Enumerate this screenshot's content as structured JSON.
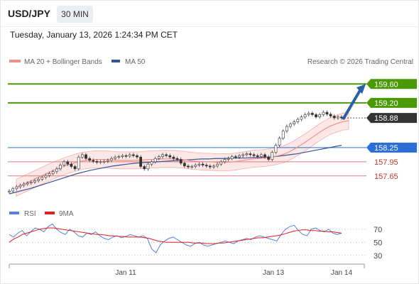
{
  "header": {
    "symbol": "USD/JPY",
    "timeframe": "30 MIN",
    "datetime": "Tuesday, January 13, 2026 1:24:34 PM CET"
  },
  "watermark": "Research © 2026 Trading Central",
  "colors": {
    "resistance": "#4a9a07",
    "support_red": "#e87a7a",
    "pivot_blue": "#2b6fd6",
    "ma20": "#f0908a",
    "ma50": "#35559a",
    "last": "#333333",
    "rsi": "#5b7fd4",
    "rsi_ma": "#e02020",
    "arrow": "#2b5fa8"
  },
  "chart_data": [
    {
      "type": "line",
      "title": "",
      "legend": [
        {
          "name": "MA 20 + Bollinger Bands",
          "color": "#f0908a"
        },
        {
          "name": "MA 50",
          "color": "#35559a"
        }
      ],
      "x_tick_labels": [
        "Jan 11",
        "Jan 13",
        "Jan 14"
      ],
      "ylim": [
        157.12,
        159.92
      ],
      "levels": [
        {
          "label": "159.60",
          "value": 159.6,
          "kind": "resistance"
        },
        {
          "label": "159.20",
          "value": 159.2,
          "kind": "resistance"
        },
        {
          "label": "158.88",
          "value": 158.88,
          "kind": "last"
        },
        {
          "label": "158.25",
          "value": 158.25,
          "kind": "pivot"
        },
        {
          "label": "157.95",
          "value": 157.95,
          "kind": "support"
        },
        {
          "label": "157.65",
          "value": 157.65,
          "kind": "support"
        }
      ],
      "arrow": {
        "from": 158.88,
        "to": 159.6
      },
      "price": [
        157.33,
        157.38,
        157.42,
        157.45,
        157.48,
        157.5,
        157.52,
        157.55,
        157.58,
        157.62,
        157.66,
        157.7,
        157.74,
        157.8,
        157.88,
        157.95,
        157.9,
        157.85,
        157.8,
        158.05,
        158.1,
        158.02,
        157.98,
        157.96,
        157.94,
        157.95,
        157.96,
        157.98,
        158.02,
        158.05,
        158.06,
        158.08,
        158.07,
        158.1,
        158.08,
        158.05,
        157.85,
        157.8,
        157.9,
        157.95,
        158.02,
        158.06,
        158.1,
        158.08,
        158.05,
        158.02,
        158.0,
        157.92,
        157.86,
        157.84,
        157.85,
        157.88,
        157.9,
        157.88,
        157.86,
        157.84,
        157.86,
        157.9,
        157.95,
        158.0,
        158.02,
        158.06,
        158.05,
        158.08,
        158.1,
        158.12,
        158.1,
        158.08,
        158.06,
        158.1,
        158.05,
        158.0,
        158.15,
        158.3,
        158.45,
        158.6,
        158.7,
        158.75,
        158.8,
        158.85,
        158.9,
        158.95,
        158.98,
        158.95,
        158.9,
        158.95,
        159.0,
        158.96,
        158.92,
        158.88,
        158.9,
        158.88
      ],
      "ma20": [
        157.4,
        157.46,
        157.52,
        157.58,
        157.64,
        157.7,
        157.76,
        157.81,
        157.86,
        157.9,
        157.94,
        157.97,
        157.99,
        158.0,
        158.0,
        158.0,
        157.99,
        157.98,
        157.98,
        157.98,
        157.98,
        157.99,
        158.0,
        158.0,
        158.01,
        158.01,
        158.01,
        158.0,
        157.99,
        157.97,
        157.96,
        157.95,
        157.95,
        157.94,
        157.94,
        157.94,
        157.95,
        157.97,
        157.99,
        158.01,
        158.02,
        158.03,
        158.05,
        158.07,
        158.1,
        158.15,
        158.22,
        158.3,
        158.38,
        158.47,
        158.56,
        158.64,
        158.71,
        158.76,
        158.8,
        158.82
      ],
      "ma50": [
        157.27,
        157.31,
        157.35,
        157.39,
        157.44,
        157.49,
        157.54,
        157.59,
        157.64,
        157.69,
        157.73,
        157.77,
        157.8,
        157.83,
        157.86,
        157.88,
        157.9,
        157.92,
        157.93,
        157.94,
        157.95,
        157.96,
        157.97,
        157.98,
        157.99,
        158.0,
        158.01,
        158.01,
        158.02,
        158.02,
        158.03,
        158.03,
        158.03,
        158.04,
        158.04,
        158.05,
        158.06,
        158.08,
        158.1,
        158.12,
        158.15,
        158.18,
        158.21,
        158.24,
        158.27,
        158.3
      ]
    },
    {
      "type": "line",
      "title": "",
      "legend": [
        {
          "name": "RSI",
          "color": "#5b7fd4"
        },
        {
          "name": "9MA",
          "color": "#e02020"
        }
      ],
      "ylim": [
        20,
        85
      ],
      "levels": [
        70,
        50,
        30
      ],
      "rsi": [
        62,
        58,
        64,
        68,
        60,
        66,
        72,
        70,
        66,
        74,
        78,
        70,
        65,
        62,
        70,
        66,
        60,
        58,
        64,
        62,
        66,
        60,
        56,
        54,
        58,
        60,
        57,
        59,
        62,
        60,
        58,
        60,
        56,
        40,
        34,
        46,
        52,
        56,
        58,
        54,
        50,
        46,
        44,
        48,
        50,
        46,
        44,
        46,
        48,
        50,
        52,
        50,
        48,
        52,
        54,
        56,
        54,
        58,
        60,
        58,
        56,
        54,
        52,
        62,
        70,
        74,
        76,
        68,
        62,
        60,
        70,
        72,
        68,
        66,
        70,
        64,
        62,
        64
      ],
      "rsi_ma": [
        50,
        55,
        58,
        62,
        64,
        66,
        68,
        70,
        71,
        72,
        72,
        71,
        70,
        69,
        68,
        67,
        66,
        65,
        64,
        63,
        62,
        62,
        61,
        60,
        60,
        59,
        59,
        58,
        58,
        58,
        58,
        57,
        56,
        54,
        52,
        51,
        50,
        50,
        50,
        50,
        50,
        50,
        49,
        49,
        49,
        48,
        48,
        48,
        49,
        49,
        50,
        51,
        52,
        53,
        54,
        55,
        56,
        57,
        57,
        58,
        59,
        60,
        61,
        63,
        65,
        67,
        68,
        69,
        69,
        68,
        68,
        67,
        67,
        66,
        66,
        65,
        64
      ]
    }
  ]
}
